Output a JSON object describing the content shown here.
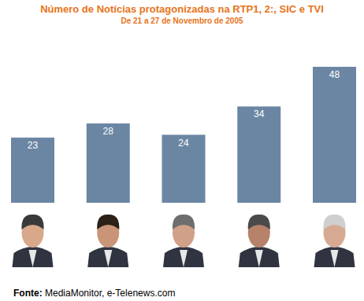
{
  "chart_data": {
    "type": "bar",
    "title": "Número de Notícias protagonizadas na RTP1, 2:, SIC e TVI",
    "subtitle": "De 21 a 27 de Novembro de 2005",
    "source": "Fonte: MediaMonitor, e-Telenews.com",
    "categories": [
      null,
      null,
      null,
      null,
      null
    ],
    "values": [
      23,
      28,
      24,
      34,
      48
    ],
    "color": "#6b86a3",
    "ylim": [
      0,
      48
    ],
    "data_labels": true,
    "tick_labels": false,
    "grid": false
  }
}
